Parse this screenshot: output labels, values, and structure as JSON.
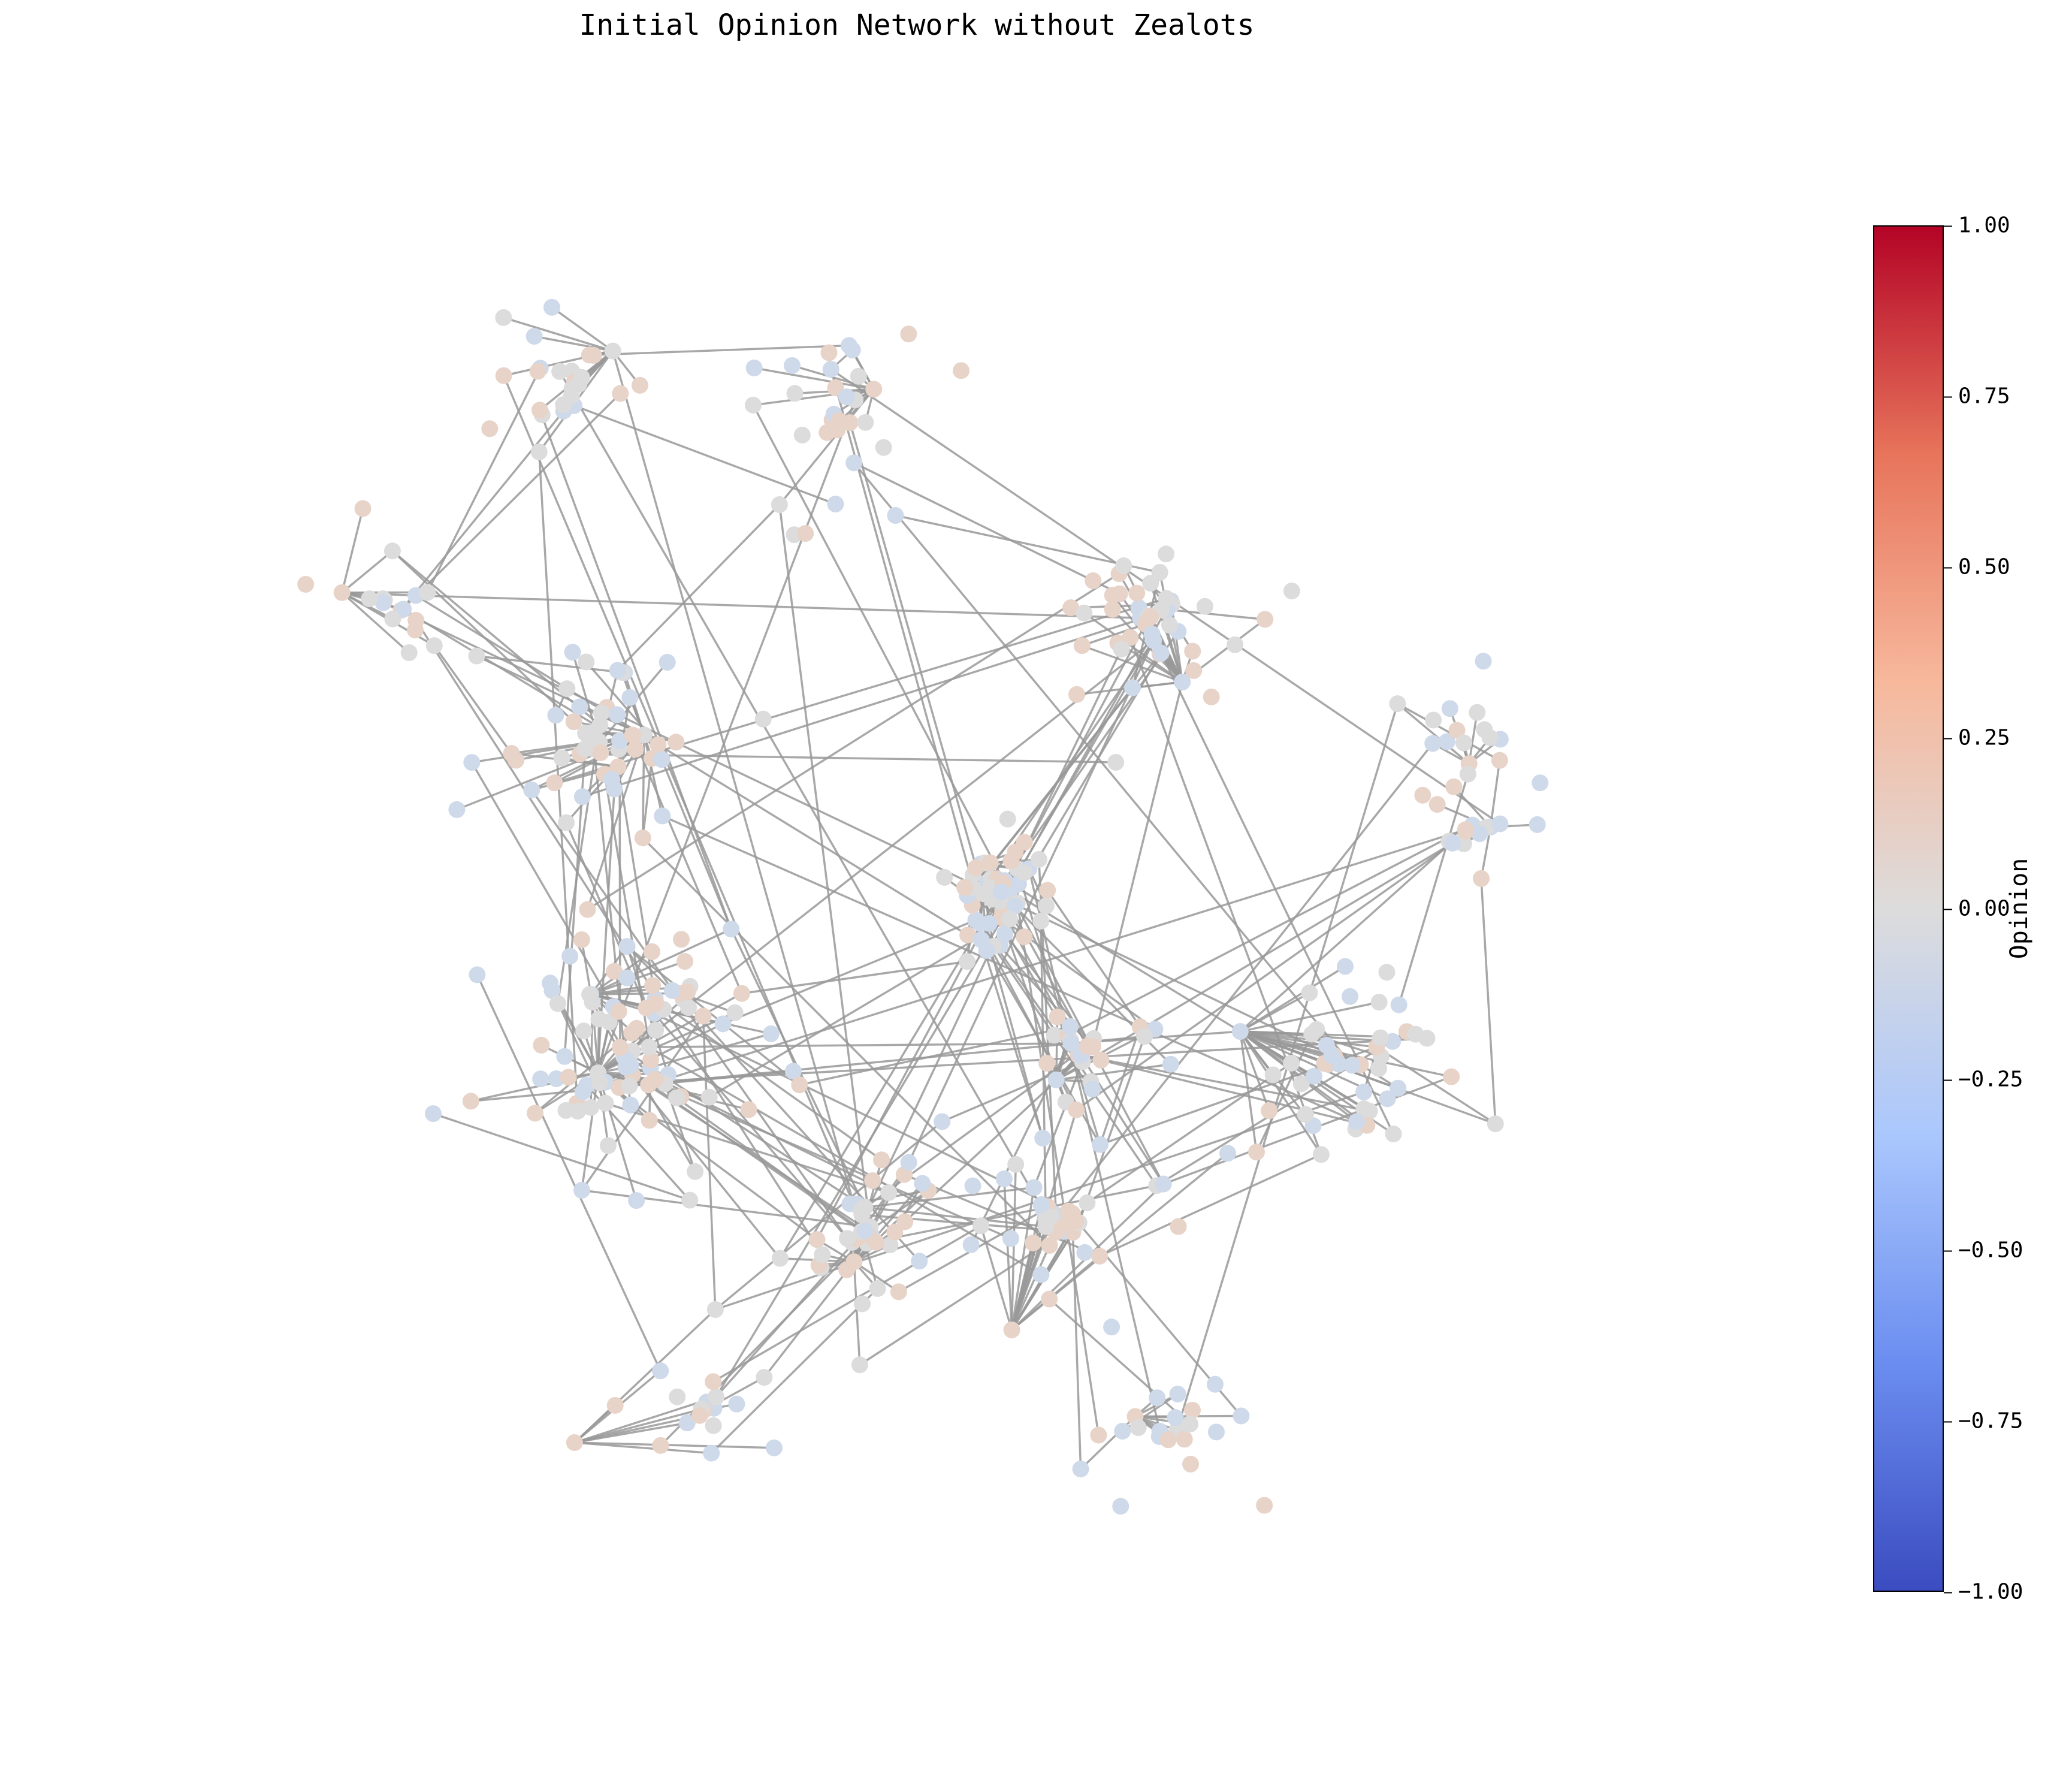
{
  "figure": {
    "title": "Initial Opinion Network without Zealots"
  },
  "colorbar": {
    "label": "Opinion",
    "colormap": "coolwarm",
    "min": -1.0,
    "max": 1.0,
    "ticks": [
      "1.00",
      "0.75",
      "0.50",
      "0.25",
      "0.00",
      "−0.25",
      "−0.50",
      "−0.75",
      "−1.00"
    ],
    "tick_values": [
      1.0,
      0.75,
      0.5,
      0.25,
      0.0,
      -0.25,
      -0.5,
      -0.75,
      -1.0
    ],
    "gradient_colors": [
      "#b40426",
      "#e7745b",
      "#f7b89c",
      "#dddcdc",
      "#aac7fd",
      "#6b8df0",
      "#3b4cc0"
    ]
  },
  "network": {
    "edge_color": "#999999",
    "node_colors": {
      "neutral": "#dcdcdc",
      "slightly_positive": "#e8d3c8",
      "slightly_negative": "#ced9ea"
    },
    "opinion_range_observed": [
      -0.15,
      0.15
    ]
  }
}
